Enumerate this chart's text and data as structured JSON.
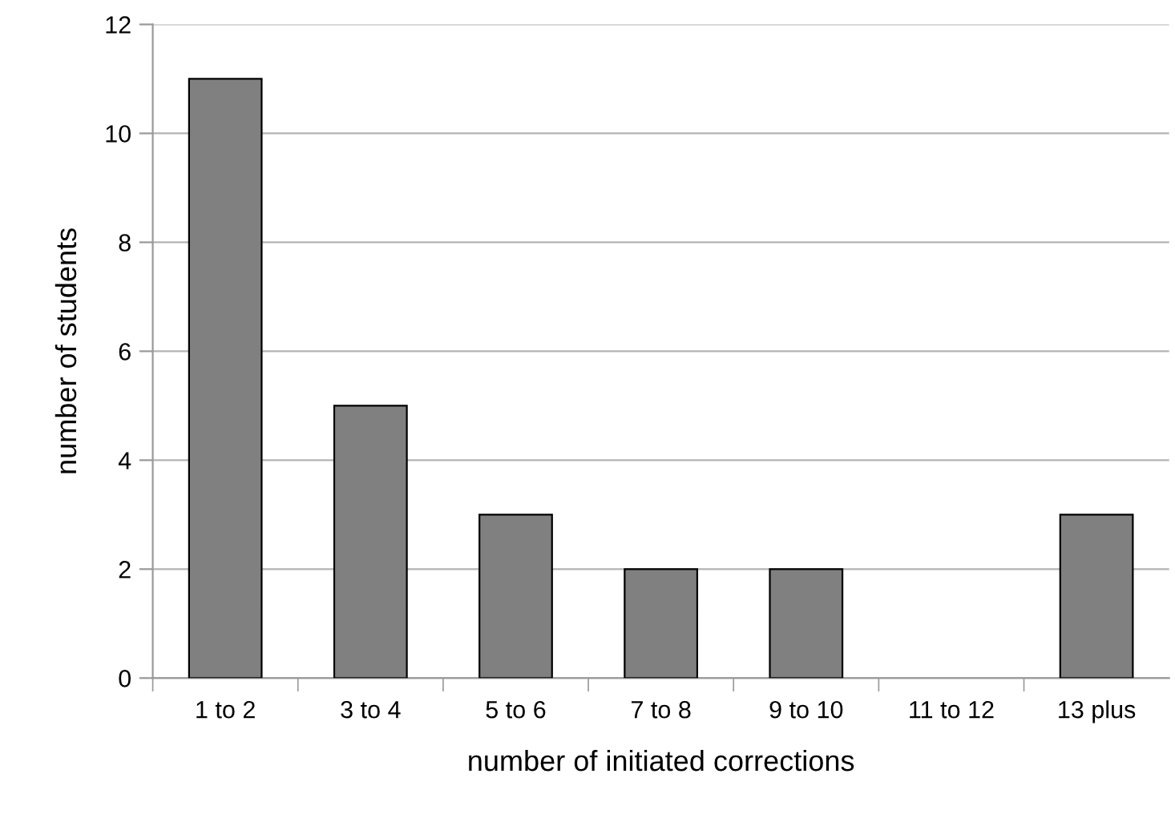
{
  "chart_data": {
    "type": "bar",
    "categories": [
      "1 to 2",
      "3 to 4",
      "5 to 6",
      "7 to 8",
      "9 to 10",
      "11 to 12",
      "13 plus"
    ],
    "values": [
      11,
      5,
      3,
      2,
      2,
      0,
      3
    ],
    "color": "#808080",
    "xlabel": "number of initiated corrections",
    "ylabel": "number of students",
    "ylim": [
      0,
      12
    ],
    "yticks": [
      0,
      2,
      4,
      6,
      8,
      10,
      12
    ],
    "grid": "y"
  }
}
